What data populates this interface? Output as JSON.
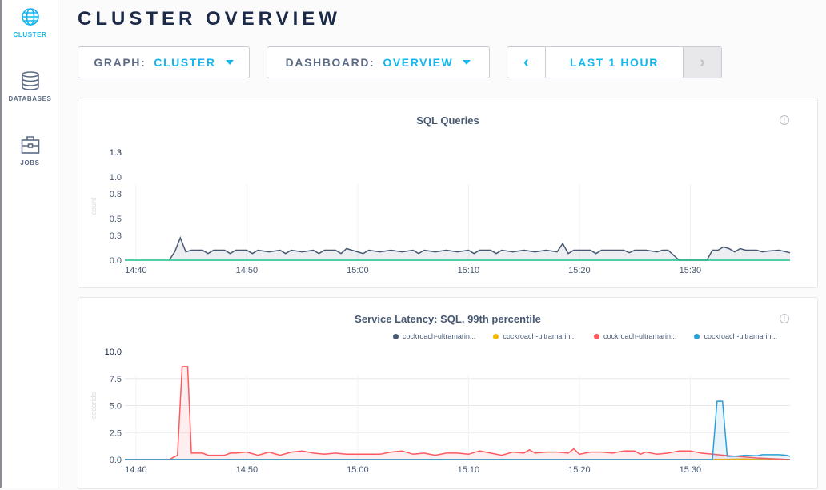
{
  "sidebar": {
    "items": [
      {
        "label": "CLUSTER",
        "icon": "globe-icon",
        "active": true
      },
      {
        "label": "DATABASES",
        "icon": "database-icon"
      },
      {
        "label": "JOBS",
        "icon": "briefcase-icon"
      }
    ]
  },
  "header": {
    "title": "CLUSTER OVERVIEW"
  },
  "controls": {
    "graph_label": "GRAPH:",
    "graph_value": "CLUSTER",
    "dashboard_label": "DASHBOARD:",
    "dashboard_value": "OVERVIEW",
    "time_range": "LAST 1 HOUR",
    "prev": "‹",
    "next": "›"
  },
  "colors": {
    "accent": "#14b6f0",
    "navy": "#1b2a48"
  },
  "chart_data": [
    {
      "type": "area",
      "title": "SQL Queries",
      "ylabel": "count",
      "xlim": [
        "14:39",
        "15:39"
      ],
      "ylim": [
        0,
        1.3
      ],
      "x_ticks": [
        "14:40",
        "14:50",
        "15:00",
        "15:10",
        "15:20",
        "15:30"
      ],
      "y_ticks": [
        "0.0",
        "0.3",
        "0.5",
        "0.8",
        "1.0",
        "1.3"
      ],
      "series": [
        {
          "color": "#475872",
          "points": [
            [
              "14:43",
              0
            ],
            [
              "14:43:30",
              0.1
            ],
            [
              "14:44",
              0.27
            ],
            [
              "14:44:30",
              0.1
            ],
            [
              "14:45",
              0.12
            ],
            [
              "14:46",
              0.12
            ],
            [
              "14:46:30",
              0.08
            ],
            [
              "14:47",
              0.12
            ],
            [
              "14:48",
              0.12
            ],
            [
              "14:48:30",
              0.08
            ],
            [
              "14:49",
              0.12
            ],
            [
              "14:50",
              0.12
            ],
            [
              "14:50:30",
              0.08
            ],
            [
              "14:51",
              0.12
            ],
            [
              "14:52",
              0.1
            ],
            [
              "14:53",
              0.12
            ],
            [
              "14:53:30",
              0.08
            ],
            [
              "14:54",
              0.12
            ],
            [
              "14:55",
              0.1
            ],
            [
              "14:56",
              0.12
            ],
            [
              "14:56:30",
              0.08
            ],
            [
              "14:57",
              0.12
            ],
            [
              "14:58",
              0.12
            ],
            [
              "14:58:30",
              0.08
            ],
            [
              "14:59",
              0.14
            ],
            [
              "15:00",
              0.1
            ],
            [
              "15:00:30",
              0.08
            ],
            [
              "15:01",
              0.12
            ],
            [
              "15:02",
              0.1
            ],
            [
              "15:03",
              0.12
            ],
            [
              "15:04",
              0.1
            ],
            [
              "15:05",
              0.12
            ],
            [
              "15:05:30",
              0.08
            ],
            [
              "15:06",
              0.12
            ],
            [
              "15:07",
              0.1
            ],
            [
              "15:08",
              0.12
            ],
            [
              "15:09",
              0.1
            ],
            [
              "15:10",
              0.12
            ],
            [
              "15:10:30",
              0.08
            ],
            [
              "15:11",
              0.12
            ],
            [
              "15:12",
              0.12
            ],
            [
              "15:12:30",
              0.08
            ],
            [
              "15:13",
              0.12
            ],
            [
              "15:14",
              0.1
            ],
            [
              "15:15",
              0.12
            ],
            [
              "15:16",
              0.1
            ],
            [
              "15:17",
              0.12
            ],
            [
              "15:18",
              0.1
            ],
            [
              "15:18:30",
              0.2
            ],
            [
              "15:19",
              0.08
            ],
            [
              "15:19:30",
              0.12
            ],
            [
              "15:21",
              0.12
            ],
            [
              "15:21:30",
              0.08
            ],
            [
              "15:22",
              0.12
            ],
            [
              "15:24",
              0.12
            ],
            [
              "15:24:30",
              0.09
            ],
            [
              "15:25",
              0.12
            ],
            [
              "15:26",
              0.12
            ],
            [
              "15:27",
              0.1
            ],
            [
              "15:27:30",
              0.12
            ],
            [
              "15:28",
              0.12
            ],
            [
              "15:29",
              0
            ],
            [
              "15:31:30",
              0
            ],
            [
              "15:32",
              0.12
            ],
            [
              "15:32:30",
              0.12
            ],
            [
              "15:33",
              0.16
            ],
            [
              "15:33:30",
              0.14
            ],
            [
              "15:34",
              0.1
            ],
            [
              "15:34:30",
              0.14
            ],
            [
              "15:35",
              0.12
            ],
            [
              "15:36",
              0.12
            ],
            [
              "15:36:30",
              0.1
            ],
            [
              "15:37",
              0.11
            ],
            [
              "15:38",
              0.12
            ],
            [
              "15:39",
              0.09
            ]
          ]
        },
        {
          "color": "#1bc08a",
          "points": [
            [
              "14:39",
              0
            ],
            [
              "15:39",
              0
            ]
          ]
        }
      ]
    },
    {
      "type": "area",
      "title": "Service Latency: SQL, 99th percentile",
      "ylabel": "seconds",
      "xlim": [
        "14:39",
        "15:39"
      ],
      "ylim": [
        0,
        10
      ],
      "x_ticks": [
        "14:40",
        "14:50",
        "15:00",
        "15:10",
        "15:20",
        "15:30"
      ],
      "y_ticks": [
        "0.0",
        "2.5",
        "5.0",
        "7.5",
        "10.0"
      ],
      "series": [
        {
          "name": "cockroach-ultramarin...",
          "color": "#475872",
          "points": [
            [
              "14:39",
              0
            ],
            [
              "15:39",
              0
            ]
          ]
        },
        {
          "name": "cockroach-ultramarin...",
          "color": "#f5b800",
          "points": [
            [
              "15:32",
              0
            ],
            [
              "15:35",
              0.05
            ],
            [
              "15:36",
              0
            ],
            [
              "15:39",
              0
            ]
          ]
        },
        {
          "name": "cockroach-ultramarin...",
          "color": "#ff5a5f",
          "points": [
            [
              "14:39",
              0
            ],
            [
              "14:43",
              0
            ],
            [
              "14:43:45",
              0.4
            ],
            [
              "14:44:10",
              8.6
            ],
            [
              "14:44:40",
              8.6
            ],
            [
              "14:45",
              0.6
            ],
            [
              "14:46",
              0.6
            ],
            [
              "14:46:30",
              0.4
            ],
            [
              "14:48",
              0.4
            ],
            [
              "14:48:30",
              0.6
            ],
            [
              "14:49",
              0.6
            ],
            [
              "14:50",
              0.7
            ],
            [
              "14:51",
              0.4
            ],
            [
              "14:52",
              0.7
            ],
            [
              "14:53",
              0.4
            ],
            [
              "14:54",
              0.7
            ],
            [
              "14:55",
              0.8
            ],
            [
              "14:56",
              0.6
            ],
            [
              "14:57",
              0.5
            ],
            [
              "14:58",
              0.6
            ],
            [
              "14:59",
              0.5
            ],
            [
              "15:00",
              0.5
            ],
            [
              "15:02",
              0.5
            ],
            [
              "15:03",
              0.7
            ],
            [
              "15:04",
              0.8
            ],
            [
              "15:05",
              0.5
            ],
            [
              "15:06",
              0.6
            ],
            [
              "15:07",
              0.4
            ],
            [
              "15:08",
              0.6
            ],
            [
              "15:09",
              0.6
            ],
            [
              "15:10",
              0.5
            ],
            [
              "15:11",
              0.8
            ],
            [
              "15:12",
              0.6
            ],
            [
              "15:13",
              0.4
            ],
            [
              "15:14",
              0.7
            ],
            [
              "15:15",
              0.6
            ],
            [
              "15:15:30",
              0.9
            ],
            [
              "15:16",
              0.6
            ],
            [
              "15:17",
              0.7
            ],
            [
              "15:18",
              0.7
            ],
            [
              "15:19",
              0.6
            ],
            [
              "15:19:30",
              1.0
            ],
            [
              "15:20",
              0.5
            ],
            [
              "15:21",
              0.7
            ],
            [
              "15:22",
              0.7
            ],
            [
              "15:23",
              0.6
            ],
            [
              "15:24",
              0.8
            ],
            [
              "15:25",
              0.8
            ],
            [
              "15:25:30",
              0.5
            ],
            [
              "15:26",
              0.7
            ],
            [
              "15:27",
              0.5
            ],
            [
              "15:28",
              0.6
            ],
            [
              "15:29",
              0.8
            ],
            [
              "15:30",
              0.8
            ],
            [
              "15:31",
              0.6
            ],
            [
              "15:33",
              0.4
            ],
            [
              "15:36",
              0.15
            ],
            [
              "15:39",
              0
            ]
          ]
        },
        {
          "name": "cockroach-ultramarin...",
          "color": "#29a0d8",
          "points": [
            [
              "14:39",
              0
            ],
            [
              "15:32",
              0
            ],
            [
              "15:32:25",
              5.4
            ],
            [
              "15:32:55",
              5.4
            ],
            [
              "15:33:20",
              0.3
            ],
            [
              "15:34",
              0.3
            ],
            [
              "15:35",
              0.4
            ],
            [
              "15:36",
              0.35
            ],
            [
              "15:36:30",
              0.45
            ],
            [
              "15:38",
              0.45
            ],
            [
              "15:38:40",
              0.4
            ],
            [
              "15:39",
              0.3
            ]
          ]
        }
      ]
    }
  ]
}
